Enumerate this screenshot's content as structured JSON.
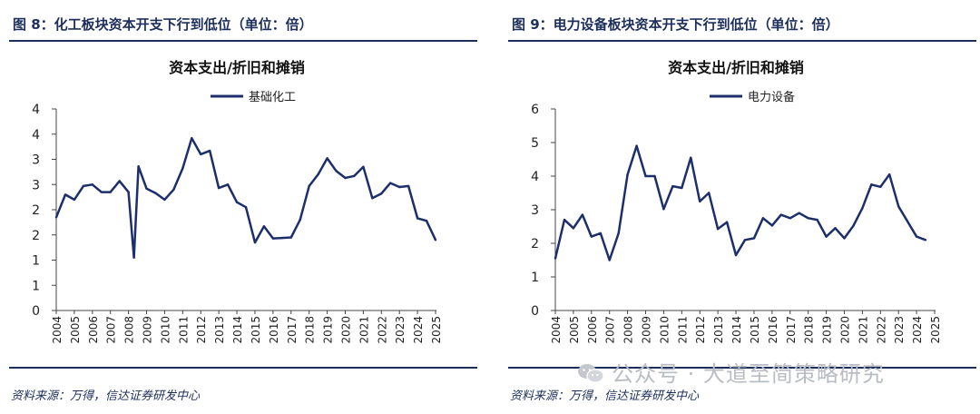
{
  "watermark": {
    "text": "公众号 · 大道至简策略研究",
    "icon": "wechat-icon"
  },
  "panels": [
    {
      "figure_title": "图 8：化工板块资本开支下行到低位（单位：倍）",
      "source": "资料来源：万得，信达证券研发中心"
    },
    {
      "figure_title": "图 9：电力设备板块资本开支下行到低位（单位：倍）",
      "source": "资料来源：万得，信达证券研发中心"
    }
  ],
  "chart_data": [
    {
      "type": "line",
      "title": "资本支出/折旧和摊销",
      "legend": "基础化工",
      "legend_position": "top-center",
      "line_color": "#1c2f6b",
      "ylim": [
        0,
        4
      ],
      "y_ticks": [
        0,
        0.5,
        1,
        1.5,
        2,
        2.5,
        3,
        3.5,
        4
      ],
      "y_tick_labels": [
        "0",
        "1",
        "1",
        "2",
        "2",
        "3",
        "3",
        "4",
        "4"
      ],
      "x_ticks": [
        "2004",
        "2005",
        "2006",
        "2007",
        "2008",
        "2009",
        "2010",
        "2011",
        "2012",
        "2013",
        "2014",
        "2015",
        "2016",
        "2017",
        "2018",
        "2019",
        "2020",
        "2021",
        "2022",
        "2023",
        "2024",
        "2025"
      ],
      "x_range": [
        2004,
        2025
      ],
      "x": [
        2004.0,
        2004.5,
        2005.0,
        2005.5,
        2006.0,
        2006.5,
        2007.0,
        2007.5,
        2008.0,
        2008.3,
        2008.55,
        2009.0,
        2009.5,
        2010.0,
        2010.5,
        2011.0,
        2011.5,
        2012.0,
        2012.5,
        2013.0,
        2013.5,
        2014.0,
        2014.5,
        2015.0,
        2015.5,
        2016.0,
        2016.5,
        2017.0,
        2017.5,
        2018.0,
        2018.5,
        2019.0,
        2019.5,
        2020.0,
        2020.5,
        2021.0,
        2021.5,
        2022.0,
        2022.5,
        2023.0,
        2023.5,
        2024.0,
        2024.5,
        2025.0
      ],
      "values": [
        1.85,
        2.3,
        2.2,
        2.47,
        2.5,
        2.35,
        2.35,
        2.57,
        2.35,
        1.05,
        2.86,
        2.42,
        2.33,
        2.2,
        2.4,
        2.82,
        3.42,
        3.1,
        3.17,
        2.43,
        2.5,
        2.15,
        2.05,
        1.35,
        1.67,
        1.43,
        1.44,
        1.45,
        1.8,
        2.47,
        2.7,
        3.02,
        2.77,
        2.63,
        2.67,
        2.85,
        2.23,
        2.32,
        2.53,
        2.45,
        2.47,
        1.83,
        1.78,
        1.4
      ]
    },
    {
      "type": "line",
      "title": "资本支出/折旧和摊销",
      "legend": "电力设备",
      "legend_position": "top-center",
      "line_color": "#1c2f6b",
      "ylim": [
        0,
        6
      ],
      "y_ticks": [
        0,
        1,
        2,
        3,
        4,
        5,
        6
      ],
      "y_tick_labels": [
        "0",
        "1",
        "2",
        "3",
        "4",
        "5",
        "6"
      ],
      "x_ticks": [
        "2004",
        "2005",
        "2006",
        "2007",
        "2008",
        "2009",
        "2010",
        "2011",
        "2012",
        "2013",
        "2014",
        "2015",
        "2016",
        "2017",
        "2018",
        "2019",
        "2020",
        "2021",
        "2022",
        "2023",
        "2024",
        "2025"
      ],
      "x_range": [
        2004,
        2025
      ],
      "x": [
        2004.0,
        2004.5,
        2005.0,
        2005.5,
        2006.0,
        2006.5,
        2007.0,
        2007.5,
        2008.0,
        2008.5,
        2009.0,
        2009.5,
        2010.0,
        2010.5,
        2011.0,
        2011.5,
        2012.0,
        2012.5,
        2013.0,
        2013.5,
        2014.0,
        2014.5,
        2015.0,
        2015.5,
        2016.0,
        2016.5,
        2017.0,
        2017.5,
        2018.0,
        2018.5,
        2019.0,
        2019.5,
        2020.0,
        2020.5,
        2021.0,
        2021.5,
        2022.0,
        2022.5,
        2023.0,
        2023.5,
        2024.0,
        2024.5
      ],
      "values": [
        1.55,
        2.7,
        2.45,
        2.85,
        2.2,
        2.3,
        1.5,
        2.3,
        4.05,
        4.9,
        4.0,
        4.0,
        3.02,
        3.7,
        3.65,
        4.55,
        3.25,
        3.5,
        2.43,
        2.63,
        1.65,
        2.1,
        2.15,
        2.75,
        2.53,
        2.85,
        2.75,
        2.9,
        2.75,
        2.7,
        2.2,
        2.45,
        2.15,
        2.52,
        3.05,
        3.75,
        3.68,
        4.05,
        3.1,
        2.65,
        2.2,
        2.1
      ]
    }
  ]
}
